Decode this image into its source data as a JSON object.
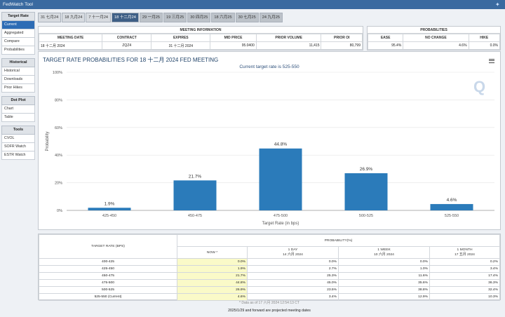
{
  "app": {
    "title": "FedWatch Tool"
  },
  "sidebar": {
    "sections": [
      {
        "header": "Target Rate",
        "items": [
          "Current",
          "Aggregated",
          "Compare",
          "Probabilities"
        ]
      },
      {
        "header": "Historical",
        "items": [
          "Historical",
          "Downloads",
          "Prior Hikes"
        ]
      },
      {
        "header": "Dot Plot",
        "items": [
          "Chart",
          "Table"
        ]
      },
      {
        "header": "Tools",
        "items": [
          "CVOL",
          "SOFR Watch",
          "ESTR Watch"
        ]
      }
    ]
  },
  "tabs": [
    "31 七月24",
    "18 九月24",
    "7 十一月24",
    "18 十二月24",
    "29 一月25",
    "19 三月25",
    "30 四月25",
    "18 六月25",
    "30 七月25",
    "24 九月25"
  ],
  "meeting_info": {
    "header": "MEETING INFORMATION",
    "columns": [
      "MEETING DATE",
      "CONTRACT",
      "EXPIRES",
      "MID PRICE",
      "PRIOR VOLUME",
      "PRIOR OI"
    ],
    "values": [
      "18 十二月 2024",
      "ZQZ4",
      "31 十二月 2024",
      "95.0400",
      "11,415",
      "80,799"
    ]
  },
  "probabilities": {
    "header": "PROBABILITIES",
    "columns": [
      "EASE",
      "NO CHANGE",
      "HIKE"
    ],
    "values": [
      "95.4%",
      "4.6%",
      "0.0%"
    ]
  },
  "chart": {
    "title": "TARGET RATE PROBABILITIES FOR 18 十二月 2024 FED MEETING",
    "subtitle": "Current target rate is 525-550",
    "logo_text": "Q"
  },
  "chart_data": {
    "type": "bar",
    "title": "TARGET RATE PROBABILITIES FOR 18 十二月 2024 FED MEETING",
    "subtitle": "Current target rate is 525-550",
    "categories": [
      "425-450",
      "450-475",
      "475-500",
      "500-525",
      "525-550"
    ],
    "values": [
      1.9,
      21.7,
      44.8,
      26.9,
      4.6
    ],
    "labels": [
      "1.9%",
      "21.7%",
      "44.8%",
      "26.9%",
      "4.6%"
    ],
    "xlabel": "Target Rate (in bps)",
    "ylabel": "Probability",
    "ylim": [
      0,
      100
    ],
    "yticks": [
      0,
      20,
      40,
      60,
      80,
      100
    ],
    "ytick_labels": [
      "0%",
      "20%",
      "40%",
      "60%",
      "80%",
      "100%"
    ],
    "grid": true,
    "bar_color": "#2b7bba"
  },
  "prob_table": {
    "col_target": "TARGET RATE (BPS)",
    "col_prob": "PROBABILITY(%)",
    "subcols": [
      {
        "line1": "NOW *",
        "line2": ""
      },
      {
        "line1": "1 DAY",
        "line2": "14 六月 2024"
      },
      {
        "line1": "1 WEEK",
        "line2": "10 六月 2024"
      },
      {
        "line1": "1 MONTH",
        "line2": "17 五月 2024"
      }
    ],
    "rows": [
      {
        "rate": "400-425",
        "now": "0.0%",
        "day": "0.0%",
        "week": "0.0%",
        "month": "0.2%"
      },
      {
        "rate": "425-450",
        "now": "1.9%",
        "day": "2.7%",
        "week": "1.0%",
        "month": "3.4%"
      },
      {
        "rate": "450-475",
        "now": "21.7%",
        "day": "25.3%",
        "week": "11.6%",
        "month": "17.4%"
      },
      {
        "rate": "475-500",
        "now": "44.8%",
        "day": "45.0%",
        "week": "35.6%",
        "month": "36.3%"
      },
      {
        "rate": "500-525",
        "now": "26.9%",
        "day": "23.5%",
        "week": "38.8%",
        "month": "32.4%"
      },
      {
        "rate": "525-550 (Current)",
        "now": "4.6%",
        "day": "3.4%",
        "week": "12.9%",
        "month": "10.3%"
      }
    ],
    "note": "* Data as of 17 六月 2024 12:54:13 CT"
  },
  "footer": "2025/1/29 and forward are projected meeting dates"
}
